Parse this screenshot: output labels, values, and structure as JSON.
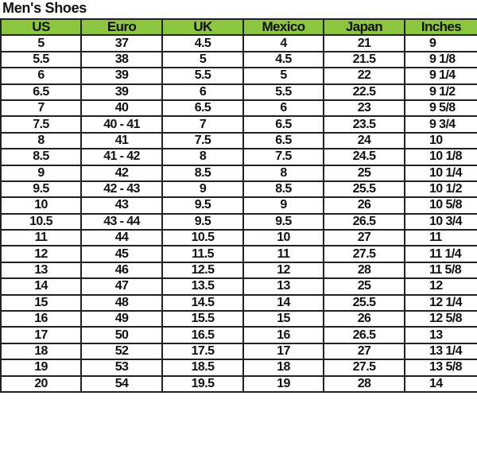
{
  "title": "Men's Shoes",
  "colors": {
    "header_bg": "#8cc63f",
    "border": "#222222"
  },
  "table": {
    "columns": [
      "US",
      "Euro",
      "UK",
      "Mexico",
      "Japan",
      "Inches"
    ],
    "rows": [
      [
        "5",
        "37",
        "4.5",
        "4",
        "21",
        "9"
      ],
      [
        "5.5",
        "38",
        "5",
        "4.5",
        "21.5",
        "9 1/8"
      ],
      [
        "6",
        "39",
        "5.5",
        "5",
        "22",
        "9 1/4"
      ],
      [
        "6.5",
        "39",
        "6",
        "5.5",
        "22.5",
        "9 1/2"
      ],
      [
        "7",
        "40",
        "6.5",
        "6",
        "23",
        "9 5/8"
      ],
      [
        "7.5",
        "40 - 41",
        "7",
        "6.5",
        "23.5",
        "9 3/4"
      ],
      [
        "8",
        "41",
        "7.5",
        "6.5",
        "24",
        "10"
      ],
      [
        "8.5",
        "41 - 42",
        "8",
        "7.5",
        "24.5",
        "10 1/8"
      ],
      [
        "9",
        "42",
        "8.5",
        "8",
        "25",
        "10 1/4"
      ],
      [
        "9.5",
        "42 - 43",
        "9",
        "8.5",
        "25.5",
        "10 1/2"
      ],
      [
        "10",
        "43",
        "9.5",
        "9",
        "26",
        "10 5/8"
      ],
      [
        "10.5",
        "43 - 44",
        "9.5",
        "9.5",
        "26.5",
        "10 3/4"
      ],
      [
        "11",
        "44",
        "10.5",
        "10",
        "27",
        "11"
      ],
      [
        "12",
        "45",
        "11.5",
        "11",
        "27.5",
        "11 1/4"
      ],
      [
        "13",
        "46",
        "12.5",
        "12",
        "28",
        "11 5/8"
      ],
      [
        "14",
        "47",
        "13.5",
        "13",
        "25",
        "12"
      ],
      [
        "15",
        "48",
        "14.5",
        "14",
        "25.5",
        "12 1/4"
      ],
      [
        "16",
        "49",
        "15.5",
        "15",
        "26",
        "12 5/8"
      ],
      [
        "17",
        "50",
        "16.5",
        "16",
        "26.5",
        "13"
      ],
      [
        "18",
        "52",
        "17.5",
        "17",
        "27",
        "13 1/4"
      ],
      [
        "19",
        "53",
        "18.5",
        "18",
        "27.5",
        "13 5/8"
      ],
      [
        "20",
        "54",
        "19.5",
        "19",
        "28",
        "14"
      ]
    ]
  }
}
